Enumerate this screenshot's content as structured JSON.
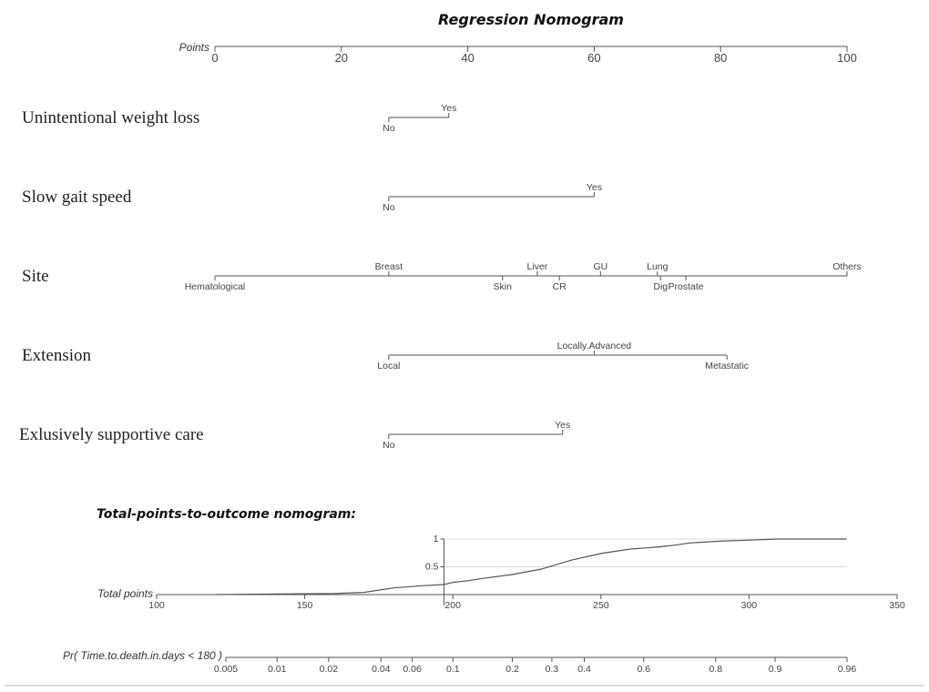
{
  "chart_data": {
    "type": "line",
    "title": "Regression Nomogram",
    "points_axis": {
      "label": "Points",
      "min": 0,
      "max": 100,
      "ticks": [
        {
          "v": 0,
          "label": "0"
        },
        {
          "v": 20,
          "label": "20"
        },
        {
          "v": 40,
          "label": "40"
        },
        {
          "v": 60,
          "label": "60"
        },
        {
          "v": 80,
          "label": "80"
        },
        {
          "v": 100,
          "label": "100"
        }
      ]
    },
    "variables": [
      {
        "name": "Unintentional weight loss",
        "levels": [
          {
            "label": "No",
            "points": 27.5,
            "side": "below"
          },
          {
            "label": "Yes",
            "points": 37,
            "side": "above"
          }
        ]
      },
      {
        "name": "Slow gait speed",
        "levels": [
          {
            "label": "No",
            "points": 27.5,
            "side": "below"
          },
          {
            "label": "Yes",
            "points": 60,
            "side": "above"
          }
        ]
      },
      {
        "name": "Site",
        "levels": [
          {
            "label": "Hematological",
            "points": 0,
            "side": "below"
          },
          {
            "label": "Breast",
            "points": 27.5,
            "side": "above"
          },
          {
            "label": "Skin",
            "points": 45.5,
            "side": "below"
          },
          {
            "label": "Liver",
            "points": 51,
            "side": "above"
          },
          {
            "label": "CR",
            "points": 54.5,
            "side": "below"
          },
          {
            "label": "GU",
            "points": 61,
            "side": "above"
          },
          {
            "label": "Lung",
            "points": 70,
            "side": "above"
          },
          {
            "label": "Dig",
            "points": 70.5,
            "side": "below"
          },
          {
            "label": "Prostate",
            "points": 74.5,
            "side": "below"
          },
          {
            "label": "Others",
            "points": 100,
            "side": "above"
          }
        ]
      },
      {
        "name": "Extension",
        "levels": [
          {
            "label": "Local",
            "points": 27.5,
            "side": "below"
          },
          {
            "label": "Locally.Advanced",
            "points": 60,
            "side": "above"
          },
          {
            "label": "Metastatic",
            "points": 81,
            "side": "below"
          }
        ]
      },
      {
        "name": "Exlusively supportive care",
        "levels": [
          {
            "label": "No",
            "points": 27.5,
            "side": "below"
          },
          {
            "label": "Yes",
            "points": 55,
            "side": "above"
          }
        ]
      }
    ],
    "outcome_title": "Total-points-to-outcome nomogram:",
    "total_points_axis": {
      "label": "Total points",
      "min": 100,
      "max": 350,
      "ticks": [
        {
          "v": 100,
          "label": "100"
        },
        {
          "v": 150,
          "label": "150"
        },
        {
          "v": 200,
          "label": "200"
        },
        {
          "v": 250,
          "label": "250"
        },
        {
          "v": 300,
          "label": "300"
        },
        {
          "v": 350,
          "label": "350"
        }
      ]
    },
    "inset": {
      "x_start": 120,
      "x_end": 333,
      "x_marker": 197,
      "ylim": [
        0,
        1
      ],
      "yticks": [
        {
          "v": 0.5,
          "label": "0.5"
        },
        {
          "v": 1,
          "label": "1"
        }
      ],
      "curve": [
        [
          120,
          0.0
        ],
        [
          140,
          0.01
        ],
        [
          160,
          0.02
        ],
        [
          170,
          0.04
        ],
        [
          175,
          0.08
        ],
        [
          180,
          0.12
        ],
        [
          190,
          0.16
        ],
        [
          197,
          0.18
        ],
        [
          200,
          0.22
        ],
        [
          205,
          0.25
        ],
        [
          210,
          0.29
        ],
        [
          220,
          0.36
        ],
        [
          230,
          0.46
        ],
        [
          235,
          0.54
        ],
        [
          240,
          0.62
        ],
        [
          245,
          0.68
        ],
        [
          250,
          0.74
        ],
        [
          255,
          0.78
        ],
        [
          260,
          0.82
        ],
        [
          265,
          0.84
        ],
        [
          270,
          0.86
        ],
        [
          275,
          0.89
        ],
        [
          280,
          0.93
        ],
        [
          290,
          0.96
        ],
        [
          300,
          0.98
        ],
        [
          310,
          1.0
        ],
        [
          333,
          1.0
        ]
      ]
    },
    "prob_axis": {
      "label": "Pr( Time.to.death.in.days < 180 )",
      "ticks": [
        {
          "v": 0.005,
          "label": "0.005"
        },
        {
          "v": 0.01,
          "label": "0.01"
        },
        {
          "v": 0.02,
          "label": "0.02"
        },
        {
          "v": 0.04,
          "label": "0.04"
        },
        {
          "v": 0.06,
          "label": "0.06"
        },
        {
          "v": 0.1,
          "label": "0.1"
        },
        {
          "v": 0.2,
          "label": "0.2"
        },
        {
          "v": 0.3,
          "label": "0.3"
        },
        {
          "v": 0.4,
          "label": "0.4"
        },
        {
          "v": 0.6,
          "label": "0.6"
        },
        {
          "v": 0.8,
          "label": "0.8"
        },
        {
          "v": 0.9,
          "label": "0.9"
        },
        {
          "v": 0.96,
          "label": "0.96"
        }
      ]
    }
  }
}
